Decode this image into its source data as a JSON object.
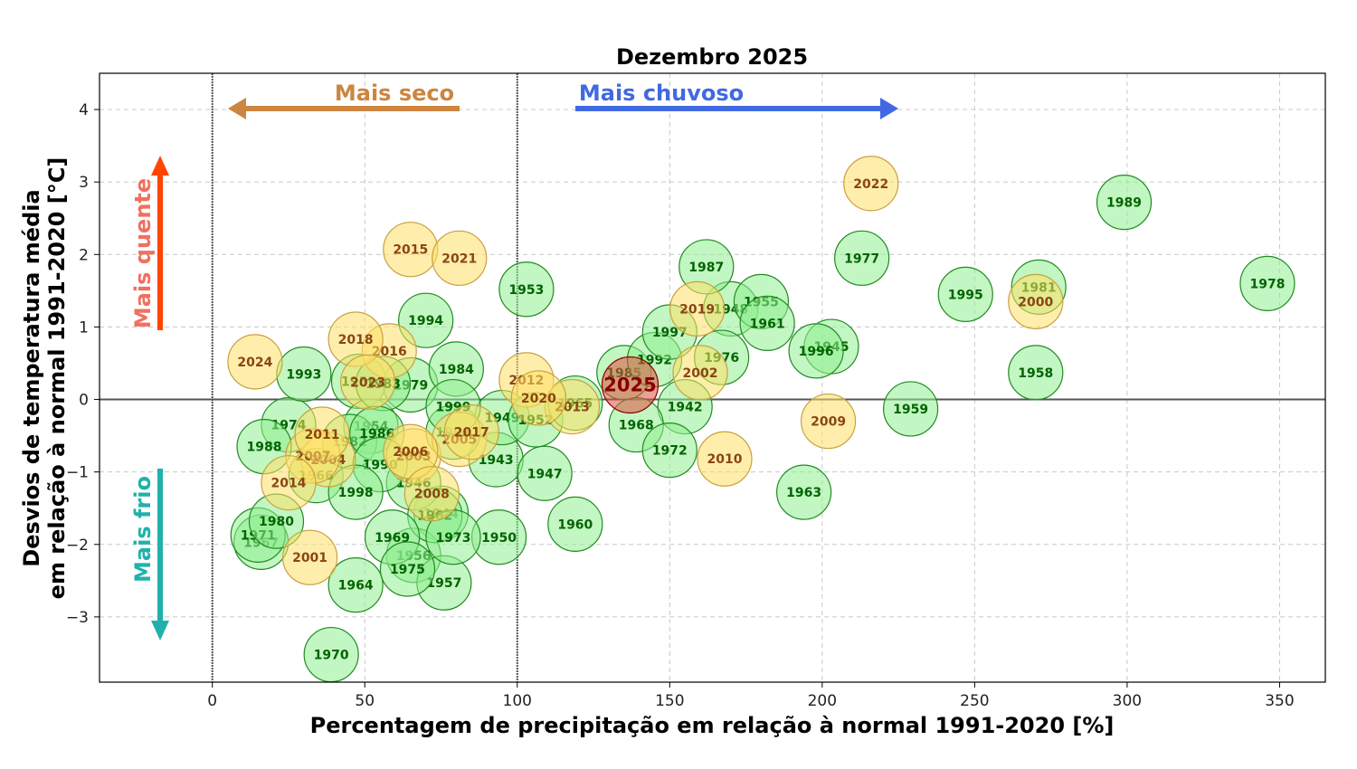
{
  "chart_data": {
    "type": "scatter",
    "title": "Dezembro 2025",
    "xlabel": "Percentagem de precipitação em relação à normal 1991-2020 [%]",
    "ylabel": [
      "Desvios de temperatura média",
      "em relação à normal 1991-2020 [°C]"
    ],
    "xlim": [
      -37,
      365
    ],
    "ylim": [
      -3.9,
      4.5
    ],
    "xticks": [
      0,
      50,
      100,
      150,
      200,
      250,
      300,
      350
    ],
    "yticks": [
      -3,
      -2,
      -1,
      0,
      1,
      2,
      3,
      4
    ],
    "ytick_labels": [
      "−3",
      "−2",
      "−1",
      "0",
      "1",
      "2",
      "3",
      "4"
    ],
    "reference_lines": {
      "x": [
        0,
        100
      ],
      "y": 0
    },
    "grid": true,
    "annotations": {
      "dry": "Mais seco",
      "wet": "Mais chuvoso",
      "warm": "Mais quente",
      "cold": "Mais frio"
    },
    "colors": {
      "before_1990": "#90EE90",
      "before_1990_edge": "#228B22",
      "before_1990_text": "#006400",
      "from_2000": "#FFE066",
      "from_2000_edge": "#C8A040",
      "from_2000_text": "#8B4513",
      "highlight": "#E05040",
      "highlight_edge": "#8B0000",
      "highlight_text": "#8B0000",
      "dry": "#CD853F",
      "wet": "#4169E1",
      "warm": "#FF4500",
      "warm_text": "#F07060",
      "cold": "#20B2AA"
    },
    "highlight": {
      "label": "2025",
      "x": 137,
      "y": 0.2
    },
    "points": [
      {
        "label": "1942",
        "x": 155,
        "y": -0.1
      },
      {
        "label": "1943",
        "x": 93,
        "y": -0.83
      },
      {
        "label": "1944",
        "x": 75,
        "y": -1.57
      },
      {
        "label": "1945",
        "x": 203,
        "y": 0.73
      },
      {
        "label": "1946",
        "x": 66,
        "y": -1.15
      },
      {
        "label": "1947",
        "x": 109,
        "y": -1.02
      },
      {
        "label": "1948",
        "x": 170,
        "y": 1.25
      },
      {
        "label": "1949",
        "x": 95,
        "y": -0.25
      },
      {
        "label": "1950",
        "x": 94,
        "y": -1.9
      },
      {
        "label": "1951",
        "x": 48,
        "y": 0.25
      },
      {
        "label": "1952",
        "x": 106,
        "y": -0.28
      },
      {
        "label": "1953",
        "x": 103,
        "y": 1.52
      },
      {
        "label": "1954",
        "x": 52,
        "y": -0.37
      },
      {
        "label": "1955",
        "x": 180,
        "y": 1.35
      },
      {
        "label": "1956",
        "x": 66,
        "y": -2.15
      },
      {
        "label": "1957",
        "x": 76,
        "y": -2.53
      },
      {
        "label": "1958",
        "x": 270,
        "y": 0.37
      },
      {
        "label": "1959",
        "x": 229,
        "y": -0.13
      },
      {
        "label": "1960",
        "x": 119,
        "y": -1.72
      },
      {
        "label": "1961",
        "x": 182,
        "y": 1.05
      },
      {
        "label": "1962",
        "x": 73,
        "y": -1.6
      },
      {
        "label": "1963",
        "x": 194,
        "y": -1.28
      },
      {
        "label": "1964",
        "x": 47,
        "y": -2.56
      },
      {
        "label": "1965",
        "x": 119,
        "y": -0.05
      },
      {
        "label": "1966",
        "x": 34,
        "y": -1.05
      },
      {
        "label": "1967",
        "x": 16,
        "y": -1.97
      },
      {
        "label": "1968",
        "x": 139,
        "y": -0.35
      },
      {
        "label": "1969",
        "x": 59,
        "y": -1.9
      },
      {
        "label": "1970",
        "x": 39,
        "y": -3.52
      },
      {
        "label": "1971",
        "x": 15,
        "y": -1.87
      },
      {
        "label": "1972",
        "x": 150,
        "y": -0.7
      },
      {
        "label": "1973",
        "x": 79,
        "y": -1.9
      },
      {
        "label": "1974",
        "x": 25,
        "y": -0.35
      },
      {
        "label": "1975",
        "x": 64,
        "y": -2.34
      },
      {
        "label": "1976",
        "x": 167,
        "y": 0.58
      },
      {
        "label": "1977",
        "x": 213,
        "y": 1.95
      },
      {
        "label": "1978",
        "x": 346,
        "y": 1.6
      },
      {
        "label": "1979",
        "x": 65,
        "y": 0.2
      },
      {
        "label": "1980",
        "x": 21,
        "y": -1.68
      },
      {
        "label": "1981",
        "x": 271,
        "y": 1.55
      },
      {
        "label": "1982",
        "x": 45,
        "y": -0.58
      },
      {
        "label": "1983",
        "x": 56,
        "y": 0.22
      },
      {
        "label": "1984",
        "x": 80,
        "y": 0.42
      },
      {
        "label": "1985",
        "x": 135,
        "y": 0.37
      },
      {
        "label": "1986",
        "x": 54,
        "y": -0.47
      },
      {
        "label": "1987",
        "x": 162,
        "y": 1.83
      },
      {
        "label": "1988",
        "x": 17,
        "y": -0.65
      },
      {
        "label": "1989",
        "x": 299,
        "y": 2.72
      },
      {
        "label": "1990",
        "x": 55,
        "y": -0.9
      },
      {
        "label": "1991",
        "x": 79,
        "y": -0.45
      },
      {
        "label": "1992",
        "x": 145,
        "y": 0.55
      },
      {
        "label": "1993",
        "x": 30,
        "y": 0.35
      },
      {
        "label": "1994",
        "x": 70,
        "y": 1.09
      },
      {
        "label": "1995",
        "x": 247,
        "y": 1.45
      },
      {
        "label": "1996",
        "x": 198,
        "y": 0.67
      },
      {
        "label": "1997",
        "x": 150,
        "y": 0.93
      },
      {
        "label": "1998",
        "x": 47,
        "y": -1.28
      },
      {
        "label": "1999",
        "x": 79,
        "y": -0.1
      }
    ],
    "points_2000s": [
      {
        "label": "2000",
        "x": 270,
        "y": 1.35
      },
      {
        "label": "2001",
        "x": 32,
        "y": -2.18
      },
      {
        "label": "2002",
        "x": 160,
        "y": 0.37
      },
      {
        "label": "2003",
        "x": 66,
        "y": -0.78
      },
      {
        "label": "2004",
        "x": 38,
        "y": -0.83
      },
      {
        "label": "2005",
        "x": 81,
        "y": -0.55
      },
      {
        "label": "2006",
        "x": 65,
        "y": -0.72
      },
      {
        "label": "2007",
        "x": 33,
        "y": -0.78
      },
      {
        "label": "2008",
        "x": 72,
        "y": -1.3
      },
      {
        "label": "2009",
        "x": 202,
        "y": -0.3
      },
      {
        "label": "2010",
        "x": 168,
        "y": -0.82
      },
      {
        "label": "2011",
        "x": 36,
        "y": -0.48
      },
      {
        "label": "2012",
        "x": 103,
        "y": 0.27
      },
      {
        "label": "2013",
        "x": 118,
        "y": -0.1
      },
      {
        "label": "2014",
        "x": 25,
        "y": -1.15
      },
      {
        "label": "2015",
        "x": 65,
        "y": 2.07
      },
      {
        "label": "2016",
        "x": 58,
        "y": 0.67
      },
      {
        "label": "2017",
        "x": 85,
        "y": -0.45
      },
      {
        "label": "2018",
        "x": 47,
        "y": 0.83
      },
      {
        "label": "2019",
        "x": 159,
        "y": 1.25
      },
      {
        "label": "2020",
        "x": 107,
        "y": 0.02
      },
      {
        "label": "2021",
        "x": 81,
        "y": 1.95
      },
      {
        "label": "2022",
        "x": 216,
        "y": 2.98
      },
      {
        "label": "2023",
        "x": 51,
        "y": 0.24
      },
      {
        "label": "2024",
        "x": 14,
        "y": 0.52
      }
    ]
  }
}
